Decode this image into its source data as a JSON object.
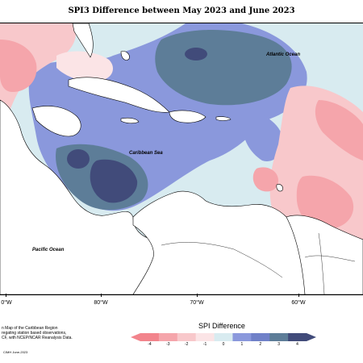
{
  "title": "SPI3 Difference between May 2023 and June 2023",
  "ocean_labels": {
    "atlantic": "Atlantic Ocean",
    "caribbean": "Caribbean Sea",
    "pacific": "Pacific Ocean"
  },
  "longitude_labels": [
    "0°W",
    "80°W",
    "70°W",
    "60°W"
  ],
  "description": {
    "line1": "n Map of the Caribbean Region",
    "line2": "regating station based observations,",
    "line3": "CF, with NCEP/NCAR Reanalysis Data."
  },
  "legend": {
    "title": "SPI Difference",
    "ticks": [
      "-4",
      "-3",
      "-2",
      "-1",
      "0",
      "1",
      "2",
      "3",
      "4"
    ],
    "colors": [
      "#f2848c",
      "#f5a5ab",
      "#f8c8cb",
      "#fbe4e6",
      "#d8ebf0",
      "#8a98dc",
      "#7081c8",
      "#5d7d98",
      "#414b7a"
    ]
  },
  "credit": "CIMH June-2023"
}
